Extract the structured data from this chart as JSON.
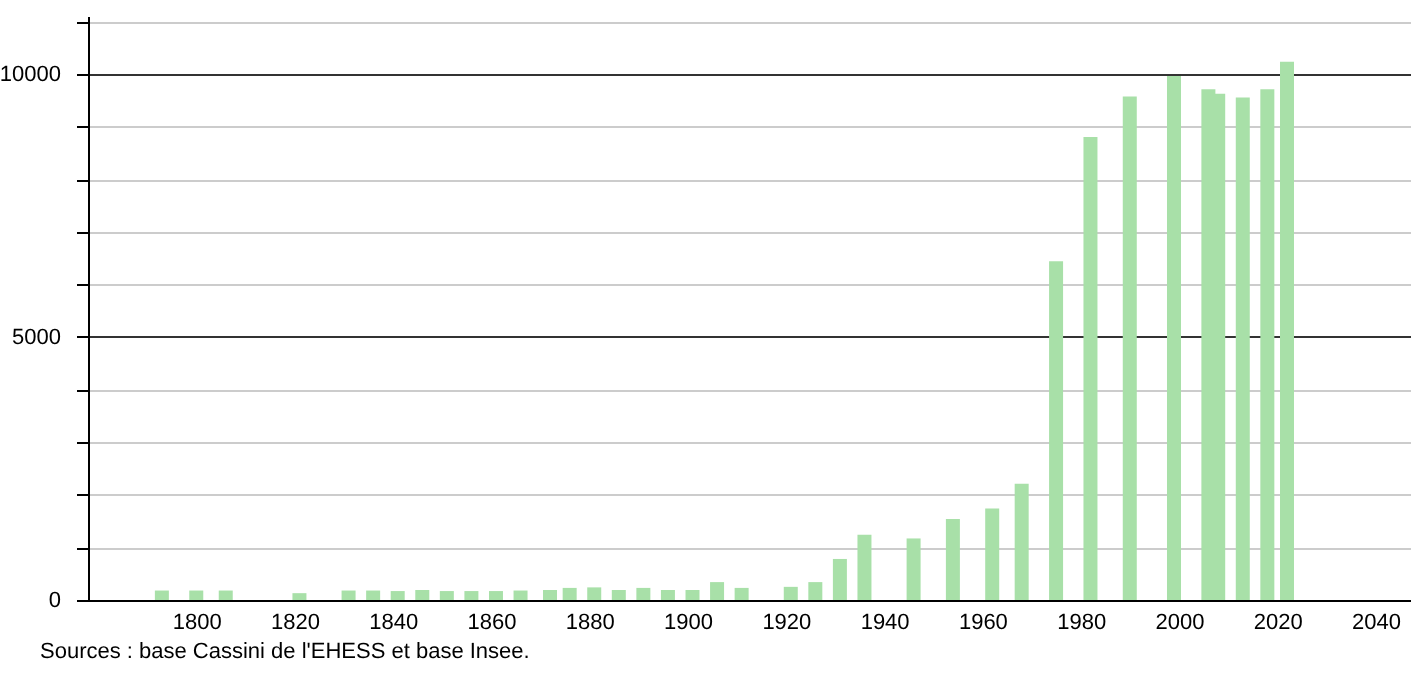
{
  "chart_data": {
    "type": "bar",
    "x": [
      1793,
      1800,
      1806,
      1821,
      1831,
      1836,
      1841,
      1846,
      1851,
      1856,
      1861,
      1866,
      1872,
      1876,
      1881,
      1886,
      1891,
      1896,
      1901,
      1906,
      1911,
      1921,
      1926,
      1931,
      1936,
      1946,
      1954,
      1962,
      1968,
      1975,
      1982,
      1990,
      1999,
      2006,
      2008,
      2013,
      2018,
      2022
    ],
    "values": [
      180,
      180,
      180,
      130,
      180,
      180,
      170,
      190,
      170,
      170,
      170,
      180,
      190,
      230,
      240,
      190,
      230,
      190,
      190,
      340,
      230,
      250,
      340,
      780,
      1240,
      1170,
      1540,
      1740,
      2210,
      6440,
      8800,
      9570,
      9960,
      9710,
      9620,
      9550,
      9710,
      10230
    ],
    "color": "#a8e0a8",
    "xlim": [
      1780,
      2045
    ],
    "xticks": [
      1800,
      1820,
      1840,
      1860,
      1880,
      1900,
      1920,
      1940,
      1960,
      1980,
      2000,
      2020,
      2040
    ],
    "ylim": [
      0,
      11100
    ],
    "yticks": [
      0,
      {
        "value": 1000,
        "label": null
      },
      {
        "value": 2000,
        "label": null
      },
      {
        "value": 3000,
        "label": null
      },
      {
        "value": 4000,
        "label": null
      },
      5000,
      {
        "value": 6000,
        "label": null
      },
      {
        "value": 7000,
        "label": null
      },
      {
        "value": 8000,
        "label": null
      },
      {
        "value": 9000,
        "label": null
      },
      10000,
      {
        "value": 11000,
        "label": null
      }
    ],
    "grid": "y",
    "annotations": [
      "Sources : base Cassini de l'EHESS et base Insee."
    ]
  }
}
